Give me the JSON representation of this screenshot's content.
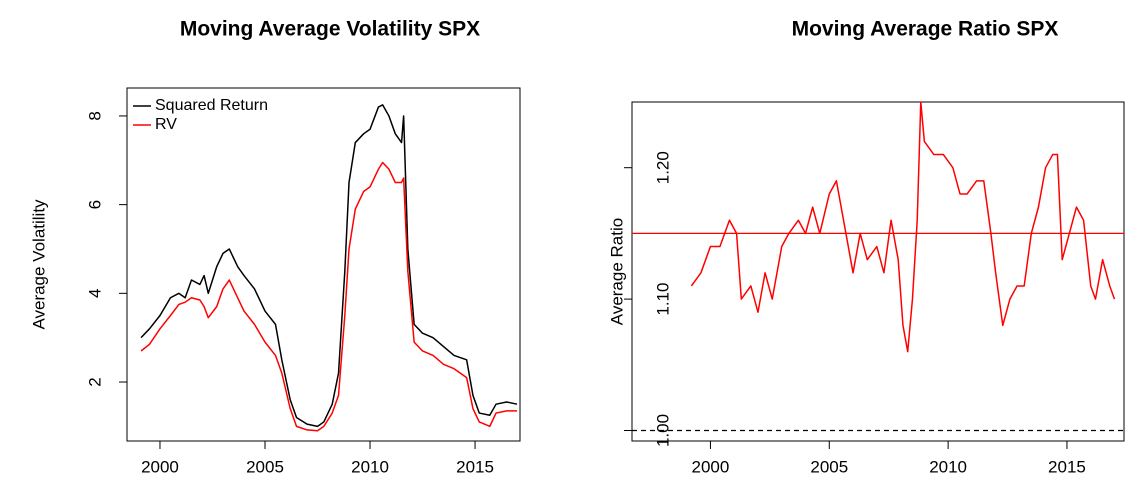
{
  "chart_data": [
    {
      "type": "line",
      "title": "Moving Average Volatility SPX",
      "ylabel": "Average Volatility",
      "xlim": [
        1998.43,
        2017.14
      ],
      "ylim": [
        0.67,
        8.63
      ],
      "xticks": [
        2000,
        2005,
        2010,
        2015
      ],
      "yticks": [
        2,
        4,
        6,
        8
      ],
      "legend": "top-left",
      "x": [
        1999.1,
        1999.5,
        2000,
        2000.5,
        2000.9,
        2001.2,
        2001.5,
        2001.9,
        2002.1,
        2002.3,
        2002.7,
        2003,
        2003.3,
        2003.7,
        2004,
        2004.5,
        2005,
        2005.5,
        2005.8,
        2006.2,
        2006.5,
        2007,
        2007.5,
        2007.8,
        2008.2,
        2008.5,
        2008.8,
        2009,
        2009.3,
        2009.7,
        2010,
        2010.4,
        2010.6,
        2010.9,
        2011.2,
        2011.5,
        2011.6,
        2011.8,
        2012.1,
        2012.5,
        2013,
        2013.5,
        2014,
        2014.6,
        2014.9,
        2015.2,
        2015.7,
        2016,
        2016.5,
        2017
      ],
      "series": [
        {
          "name": "Squared Return",
          "color": "#000000",
          "values": [
            3.0,
            3.2,
            3.5,
            3.9,
            4.0,
            3.9,
            4.3,
            4.2,
            4.4,
            4.0,
            4.6,
            4.9,
            5.0,
            4.6,
            4.4,
            4.1,
            3.6,
            3.3,
            2.5,
            1.6,
            1.2,
            1.05,
            1.0,
            1.1,
            1.5,
            2.2,
            4.5,
            6.5,
            7.4,
            7.6,
            7.7,
            8.2,
            8.25,
            8.0,
            7.6,
            7.4,
            8.0,
            5.0,
            3.3,
            3.1,
            3.0,
            2.8,
            2.6,
            2.5,
            1.7,
            1.3,
            1.25,
            1.5,
            1.55,
            1.5
          ]
        },
        {
          "name": "RV",
          "color": "#ff0000",
          "values": [
            2.7,
            2.85,
            3.2,
            3.5,
            3.75,
            3.8,
            3.9,
            3.85,
            3.7,
            3.45,
            3.7,
            4.1,
            4.3,
            3.9,
            3.6,
            3.3,
            2.9,
            2.6,
            2.2,
            1.4,
            1.0,
            0.92,
            0.9,
            1.0,
            1.3,
            1.7,
            3.5,
            5.0,
            5.9,
            6.3,
            6.4,
            6.8,
            6.95,
            6.8,
            6.5,
            6.5,
            6.6,
            4.5,
            2.9,
            2.7,
            2.6,
            2.4,
            2.3,
            2.1,
            1.4,
            1.1,
            1.0,
            1.3,
            1.35,
            1.35
          ]
        }
      ]
    },
    {
      "type": "line",
      "title": "Moving Average Ratio SPX",
      "ylabel": "Average Ratio",
      "xlim": [
        1996.7,
        2017.4
      ],
      "ylim": [
        0.992,
        1.25
      ],
      "xticks": [
        2000,
        2005,
        2010,
        2015
      ],
      "yticks": [
        {
          "value": 1.0,
          "label": "1.00"
        },
        {
          "value": 1.1,
          "label": "1.10"
        },
        {
          "value": 1.2,
          "label": "1.20"
        }
      ],
      "hlines": [
        {
          "value": 1.15,
          "color": "#ff0000",
          "style": "solid"
        },
        {
          "value": 1.0,
          "color": "#000000",
          "style": "dashed"
        }
      ],
      "x": [
        1999.2,
        1999.6,
        2000.0,
        2000.4,
        2000.8,
        2001.1,
        2001.3,
        2001.7,
        2002.0,
        2002.3,
        2002.6,
        2003.0,
        2003.3,
        2003.7,
        2004.0,
        2004.3,
        2004.6,
        2005.0,
        2005.3,
        2005.6,
        2006.0,
        2006.3,
        2006.6,
        2007.0,
        2007.3,
        2007.6,
        2007.9,
        2008.1,
        2008.3,
        2008.5,
        2008.7,
        2008.85,
        2009.0,
        2009.4,
        2009.8,
        2010.2,
        2010.5,
        2010.8,
        2011.2,
        2011.5,
        2011.8,
        2012.0,
        2012.3,
        2012.6,
        2012.9,
        2013.2,
        2013.5,
        2013.8,
        2014.1,
        2014.4,
        2014.6,
        2014.8,
        2015.1,
        2015.4,
        2015.7,
        2016.0,
        2016.2,
        2016.5,
        2016.8,
        2017.0
      ],
      "series": [
        {
          "color": "#ff0000",
          "values": [
            1.11,
            1.12,
            1.14,
            1.14,
            1.16,
            1.15,
            1.1,
            1.11,
            1.09,
            1.12,
            1.1,
            1.14,
            1.15,
            1.16,
            1.15,
            1.17,
            1.15,
            1.18,
            1.19,
            1.16,
            1.12,
            1.15,
            1.13,
            1.14,
            1.12,
            1.16,
            1.13,
            1.08,
            1.06,
            1.1,
            1.16,
            1.25,
            1.22,
            1.21,
            1.21,
            1.2,
            1.18,
            1.18,
            1.19,
            1.19,
            1.15,
            1.12,
            1.08,
            1.1,
            1.11,
            1.11,
            1.15,
            1.17,
            1.2,
            1.21,
            1.21,
            1.13,
            1.15,
            1.17,
            1.16,
            1.11,
            1.1,
            1.13,
            1.11,
            1.1
          ]
        }
      ]
    }
  ]
}
